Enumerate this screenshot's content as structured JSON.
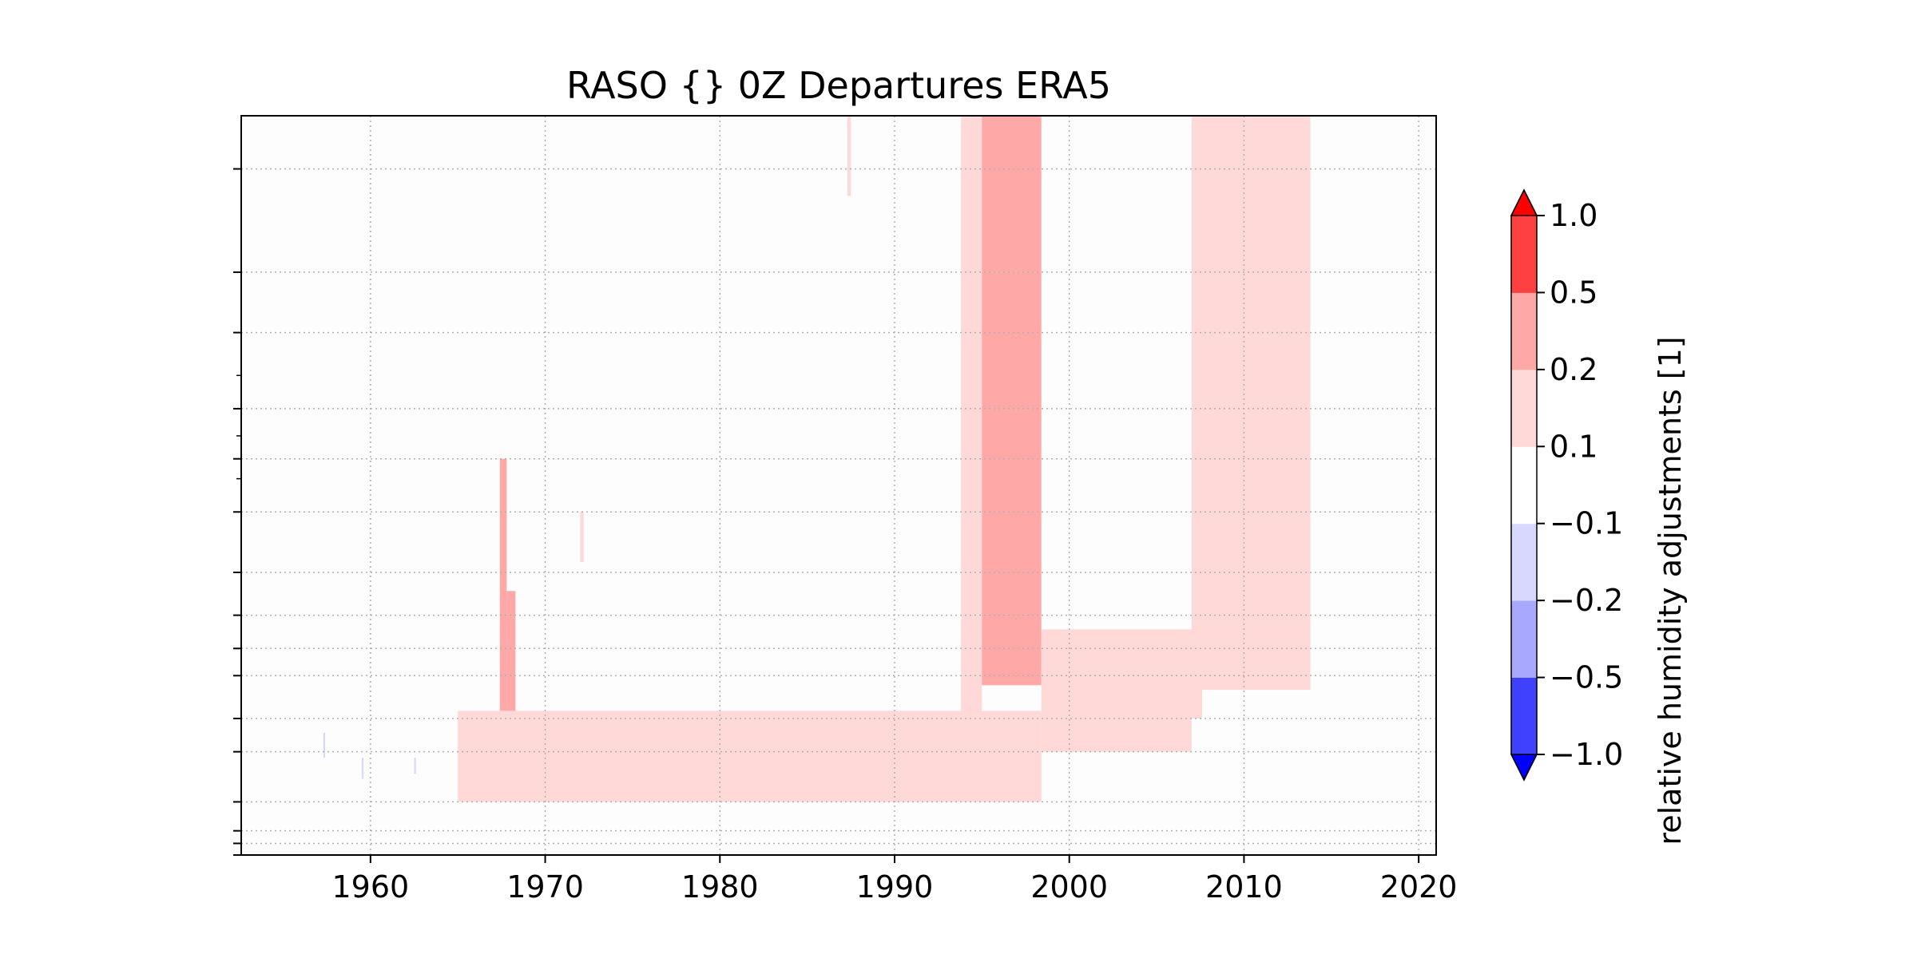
{
  "chart_data": {
    "type": "heatmap",
    "title": "RASO {}  0Z Departures ERA5",
    "xlabel": "",
    "ylabel": "",
    "x_tick_labels": [
      "1960",
      "1970",
      "1980",
      "1990",
      "2000",
      "2010",
      "2020"
    ],
    "x_ticks": [
      1960,
      1970,
      1980,
      1990,
      2000,
      2010,
      2020
    ],
    "xlim": [
      1952.6,
      2021.0
    ],
    "y_axis": "pressure levels (log scale, unlabeled)",
    "y_tick_levels": [
      10,
      20,
      30,
      50,
      70,
      100,
      150,
      200,
      250,
      300,
      400,
      500,
      700,
      850,
      925,
      1000
    ],
    "y_minor_levels": [
      40,
      60,
      80
    ],
    "ylim": [
      1000,
      7
    ],
    "grid": true,
    "colorbar": {
      "label": "relative humidity adjustments [1]",
      "tick_labels": [
        "−1.0",
        "−0.5",
        "−0.2",
        "−0.1",
        "0.1",
        "0.2",
        "0.5",
        "1.0"
      ],
      "boundaries": [
        -1.0,
        -0.5,
        -0.2,
        -0.1,
        0.1,
        0.2,
        0.5,
        1.0
      ],
      "colors": [
        "#4040ff",
        "#a8a8ff",
        "#d8d8ff",
        "#ffffff",
        "#ffd8d8",
        "#ffa8a8",
        "#ff4040"
      ],
      "under_color": "#0000ff",
      "over_color": "#ff0000",
      "extend": "both"
    },
    "regions": [
      {
        "t0": 1965.0,
        "t1": 1993.5,
        "p_top": 380,
        "p_bottom": 700,
        "value": 0.15
      },
      {
        "t0": 1967.4,
        "t1": 1967.8,
        "p_top": 70,
        "p_bottom": 380,
        "value": 0.3
      },
      {
        "t0": 1967.8,
        "t1": 1968.3,
        "p_top": 170,
        "p_bottom": 380,
        "value": 0.3
      },
      {
        "t0": 1972.0,
        "t1": 1972.2,
        "p_top": 100,
        "p_bottom": 140,
        "value": 0.15
      },
      {
        "t0": 1987.3,
        "t1": 1987.5,
        "p_top": 7,
        "p_bottom": 12,
        "value": 0.15
      },
      {
        "t0": 1993.5,
        "t1": 1998.4,
        "p_top": 380,
        "p_bottom": 700,
        "value": 0.15
      },
      {
        "t0": 1993.8,
        "t1": 1995.0,
        "p_top": 7,
        "p_bottom": 380,
        "value": 0.15
      },
      {
        "t0": 1995.0,
        "t1": 1998.4,
        "p_top": 7,
        "p_bottom": 20,
        "value": 0.3
      },
      {
        "t0": 1995.0,
        "t1": 1998.4,
        "p_top": 20,
        "p_bottom": 320,
        "value": 0.3
      },
      {
        "t0": 1998.4,
        "t1": 2007.0,
        "p_top": 220,
        "p_bottom": 500,
        "value": 0.15
      },
      {
        "t0": 2007.0,
        "t1": 2013.8,
        "p_top": 7,
        "p_bottom": 330,
        "value": 0.15
      },
      {
        "t0": 2007.0,
        "t1": 2007.6,
        "p_top": 330,
        "p_bottom": 400,
        "value": 0.15
      },
      {
        "t0": 1957.3,
        "t1": 1957.4,
        "p_top": 440,
        "p_bottom": 520,
        "value": -0.15
      },
      {
        "t0": 1959.5,
        "t1": 1959.6,
        "p_top": 520,
        "p_bottom": 600,
        "value": -0.15
      },
      {
        "t0": 1962.5,
        "t1": 1962.6,
        "p_top": 520,
        "p_bottom": 580,
        "value": -0.15
      }
    ]
  }
}
